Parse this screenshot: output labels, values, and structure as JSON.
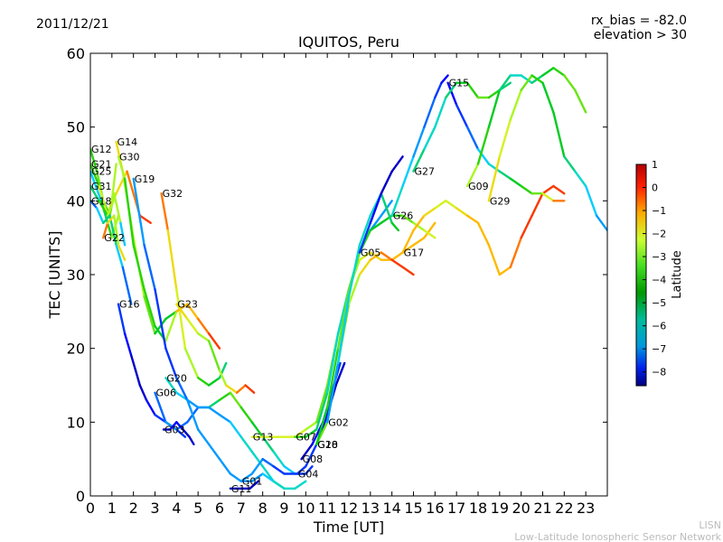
{
  "date": "2011/12/21",
  "rx_bias": "rx_bias = -82.0",
  "elevation": "elevation > 30",
  "footer_code": "LISN",
  "footer_name": "Low-Latitude Ionospheric Sensor Network",
  "chart_data": {
    "type": "line",
    "title": "IQUITOS, Peru",
    "xlabel": "Time [UT]",
    "ylabel": "TEC [UNITS]",
    "xlim": [
      0,
      24
    ],
    "ylim": [
      0,
      60
    ],
    "xticks": [
      "0",
      "1",
      "2",
      "3",
      "4",
      "5",
      "6",
      "7",
      "8",
      "9",
      "10",
      "11",
      "12",
      "13",
      "14",
      "15",
      "16",
      "17",
      "18",
      "19",
      "20",
      "21",
      "22",
      "23"
    ],
    "yticks": [
      "0",
      "10",
      "20",
      "30",
      "40",
      "50",
      "60"
    ],
    "grid": false,
    "colorbar": {
      "label": "Latitude",
      "ticks": [
        "1",
        "0",
        "−1",
        "−2",
        "−3",
        "−4",
        "−5",
        "−6",
        "−7",
        "−8"
      ],
      "range": [
        -8.6,
        1.0
      ]
    },
    "series": [
      {
        "name": "G12",
        "x": [
          0.0,
          0.3,
          0.6,
          0.9,
          1.1,
          1.4,
          1.6
        ],
        "y": [
          47,
          44,
          40,
          38,
          41,
          37,
          34
        ],
        "lat": [
          -3,
          -4,
          -2,
          -5,
          -1,
          -4,
          -7
        ]
      },
      {
        "name": "G21",
        "x": [
          0.0,
          0.4,
          0.8,
          1.0,
          1.2
        ],
        "y": [
          45,
          42,
          38,
          40,
          45
        ],
        "lat": [
          -4,
          -3,
          -1,
          -2,
          -3
        ]
      },
      {
        "name": "G25",
        "x": [
          0.0,
          0.5,
          0.8,
          1.0,
          1.3
        ],
        "y": [
          44,
          40,
          37,
          35,
          38
        ],
        "lat": [
          -6,
          -5,
          -4,
          -3,
          -2
        ]
      },
      {
        "name": "G31",
        "x": [
          0.0,
          0.4,
          0.8,
          1.2,
          1.7,
          2.3,
          2.8
        ],
        "y": [
          42,
          40,
          38,
          41,
          44,
          38,
          37
        ],
        "lat": [
          -5,
          -4,
          -3,
          -2,
          -1,
          0,
          0
        ]
      },
      {
        "name": "G18",
        "x": [
          0.0,
          0.3,
          0.6,
          0.9,
          1.2,
          1.5,
          1.9
        ],
        "y": [
          40,
          39,
          37,
          38,
          34,
          31,
          26
        ],
        "lat": [
          -7,
          -6,
          -5,
          -4,
          -5,
          -6,
          -7
        ]
      },
      {
        "name": "G22",
        "x": [
          0.6,
          0.8,
          1.1,
          1.3,
          1.6
        ],
        "y": [
          35,
          37,
          38,
          34,
          32
        ],
        "lat": [
          -1,
          0,
          -3,
          -2,
          -1
        ]
      },
      {
        "name": "G14",
        "x": [
          1.2,
          1.5,
          2.0,
          2.5,
          3.0,
          3.5,
          4.0,
          4.5
        ],
        "y": [
          48,
          44,
          35,
          27,
          22,
          24,
          25,
          26
        ],
        "lat": [
          -1,
          -2,
          -3,
          -2,
          -4,
          -4,
          -4,
          -5
        ]
      },
      {
        "name": "G32",
        "x": [
          3.3,
          3.6,
          4.0,
          4.4,
          5.0,
          5.5,
          6.0,
          6.3
        ],
        "y": [
          41,
          36,
          28,
          20,
          16,
          15,
          16,
          18
        ],
        "lat": [
          0,
          -1,
          -2,
          -2,
          -3,
          -4,
          -4,
          -5
        ]
      },
      {
        "name": "G30",
        "x": [
          1.3,
          1.6,
          2.0,
          2.5,
          3.0,
          3.5,
          4.0,
          4.5,
          5.0,
          5.5,
          6.0
        ],
        "y": [
          46,
          43,
          34,
          28,
          23,
          21,
          25,
          26,
          24,
          22,
          20
        ],
        "lat": [
          -2,
          -3,
          -4,
          -3,
          -4,
          -4,
          -1,
          -1,
          -1,
          0,
          0
        ]
      },
      {
        "name": "G16",
        "x": [
          1.3,
          1.6,
          1.9,
          2.1,
          2.3,
          2.6,
          3.0,
          3.5,
          4.0,
          4.4
        ],
        "y": [
          26,
          22,
          19,
          17,
          15,
          13,
          11,
          10,
          9,
          8
        ],
        "lat": [
          -7,
          -7,
          -8,
          -8,
          -8,
          -8,
          -7,
          -7,
          -7,
          -7
        ]
      },
      {
        "name": "G23",
        "x": [
          4.0,
          4.5,
          5.0,
          5.5,
          6.0,
          6.3,
          6.8,
          7.2,
          7.6
        ],
        "y": [
          26,
          24,
          22,
          21,
          17,
          15,
          14,
          15,
          14
        ],
        "lat": [
          -1,
          -2,
          -2,
          -3,
          -3,
          -2,
          -1,
          0,
          0
        ]
      },
      {
        "name": "G20",
        "x": [
          3.5,
          4.0,
          4.5,
          5.0,
          5.5,
          6.0,
          6.5,
          7.0,
          7.5,
          8.0,
          8.5,
          9.0,
          9.5
        ],
        "y": [
          16,
          14,
          13,
          12,
          12,
          13,
          14,
          12,
          10,
          8,
          6,
          4,
          3
        ],
        "lat": [
          -5,
          -5,
          -6,
          -6,
          -5,
          -4,
          -3,
          -3,
          -4,
          -4,
          -5,
          -5,
          -6
        ]
      },
      {
        "name": "G06",
        "x": [
          3.0,
          3.5,
          4.0,
          4.5,
          5.0,
          5.5,
          6.0,
          6.5,
          7.0,
          7.5,
          8.0,
          8.5,
          9.0
        ],
        "y": [
          14,
          10,
          9,
          10,
          12,
          12,
          11,
          10,
          8,
          6,
          4,
          2,
          1
        ],
        "lat": [
          -7,
          -6,
          -6,
          -7,
          -6,
          -6,
          -6,
          -6,
          -5,
          -5,
          -5,
          -5,
          -4
        ]
      },
      {
        "name": "G03",
        "x": [
          3.4,
          3.7,
          4.0,
          4.3,
          4.6,
          4.8
        ],
        "y": [
          9,
          9,
          10,
          9,
          8,
          7
        ],
        "lat": [
          -8,
          -8,
          -7,
          -8,
          -8,
          -8
        ]
      },
      {
        "name": "G19",
        "x": [
          2.0,
          2.5,
          3.0,
          3.5,
          4.0,
          4.5,
          5.0,
          5.5,
          6.0,
          6.5,
          7.0,
          7.5,
          8.0,
          8.5,
          9.0,
          9.5,
          10.0
        ],
        "y": [
          43,
          34,
          28,
          20,
          16,
          13,
          9,
          7,
          5,
          3,
          2,
          2,
          3,
          2,
          1,
          1,
          2
        ],
        "lat": [
          -6,
          -6,
          -7,
          -7,
          -7,
          -6,
          -6,
          -6,
          -6,
          -6,
          -6,
          -6,
          -6,
          -5,
          -5,
          -5,
          -5
        ]
      },
      {
        "name": "G11",
        "x": [
          6.5,
          7.0,
          7.4,
          7.8
        ],
        "y": [
          1,
          1,
          1,
          2
        ],
        "lat": [
          -8,
          -8,
          -8,
          -8
        ]
      },
      {
        "name": "G01",
        "x": [
          7.0,
          7.5,
          8.0,
          8.5,
          9.0,
          9.5,
          10.0,
          10.3
        ],
        "y": [
          2,
          3,
          5,
          4,
          3,
          3,
          3,
          4
        ],
        "lat": [
          -6,
          -6,
          -6,
          -7,
          -7,
          -7,
          -7,
          -7
        ]
      },
      {
        "name": "G13",
        "x": [
          7.5,
          8.0,
          8.5,
          9.0,
          9.5,
          10.0,
          10.5,
          11.0,
          11.5,
          12.0,
          12.5,
          13.0,
          13.5,
          14.0,
          14.5,
          15.0,
          15.5,
          16.0
        ],
        "y": [
          8,
          8,
          8,
          8,
          8,
          9,
          10,
          15,
          22,
          28,
          32,
          33,
          32,
          32,
          33,
          34,
          35,
          37
        ],
        "lat": [
          -2,
          -2,
          -2,
          -2,
          -2,
          -2,
          -3,
          -3,
          -3,
          -3,
          -2,
          -2,
          -1,
          -1,
          -1,
          -1,
          -1,
          -1
        ]
      },
      {
        "name": "G07",
        "x": [
          9.5,
          10.0,
          10.5,
          11.0,
          11.5,
          12.0,
          12.5,
          13.0,
          13.5,
          14.0
        ],
        "y": [
          8,
          8,
          9,
          14,
          22,
          28,
          33,
          36,
          38,
          40
        ],
        "lat": [
          -3,
          -4,
          -4,
          -5,
          -5,
          -5,
          -6,
          -6,
          -6,
          -6
        ]
      },
      {
        "name": "G08",
        "x": [
          9.8,
          10.3,
          10.8,
          11.3,
          11.6
        ],
        "y": [
          5,
          7,
          10,
          15,
          18
        ],
        "lat": [
          -8,
          -8,
          -7,
          -7,
          -7
        ]
      },
      {
        "name": "G04",
        "x": [
          9.6,
          10.0,
          10.5,
          11.0,
          11.4,
          11.8
        ],
        "y": [
          3,
          4,
          7,
          11,
          15,
          18
        ],
        "lat": [
          -7,
          -7,
          -7,
          -8,
          -8,
          -8
        ]
      },
      {
        "name": "G10",
        "x": [
          10.5,
          11.0,
          11.5,
          12.0,
          12.5,
          13.0,
          13.5,
          14.0,
          14.5,
          15.0
        ],
        "y": [
          7,
          10,
          18,
          26,
          30,
          32,
          33,
          32,
          31,
          30
        ],
        "lat": [
          -3,
          -3,
          -3,
          -3,
          -2,
          -1,
          -1,
          0,
          0,
          0
        ]
      },
      {
        "name": "G28",
        "x": [
          10.5,
          11.0,
          11.5,
          12.0,
          12.5,
          13.0,
          13.5,
          14.0,
          14.5,
          15.0,
          15.5,
          16.0
        ],
        "y": [
          7,
          12,
          20,
          28,
          33,
          36,
          37,
          38,
          38,
          37,
          36,
          35
        ],
        "lat": [
          -4,
          -4,
          -3,
          -3,
          -3,
          -4,
          -4,
          -4,
          -3,
          -3,
          -2,
          -2
        ]
      },
      {
        "name": "G02",
        "x": [
          11.0,
          11.5,
          12.0,
          12.5,
          13.0,
          13.5,
          14.0,
          14.3
        ],
        "y": [
          10,
          18,
          27,
          34,
          38,
          41,
          37,
          36
        ],
        "lat": [
          -6,
          -6,
          -5,
          -5,
          -5,
          -5,
          -4,
          -4
        ]
      },
      {
        "name": "G05",
        "x": [
          12.5,
          13.0,
          13.5,
          14.0,
          14.5
        ],
        "y": [
          33,
          37,
          41,
          44,
          46
        ],
        "lat": [
          -7,
          -7,
          -8,
          -8,
          -8
        ]
      },
      {
        "name": "G17",
        "x": [
          14.5,
          15.0,
          15.5,
          16.0,
          16.5,
          17.0,
          17.5,
          18.0,
          18.5,
          19.0,
          19.5,
          20.0,
          20.5,
          21.0,
          21.5,
          22.0
        ],
        "y": [
          33,
          36,
          38,
          39,
          40,
          39,
          38,
          37,
          34,
          30,
          31,
          35,
          38,
          41,
          42,
          41
        ],
        "lat": [
          -1,
          -1,
          -1,
          -2,
          -2,
          -2,
          -1,
          -1,
          -1,
          -1,
          -1,
          0,
          0,
          0,
          0,
          0
        ]
      },
      {
        "name": "G26",
        "x": [
          14.0,
          14.5,
          15.0,
          15.5,
          16.0,
          16.3,
          16.6
        ],
        "y": [
          38,
          42,
          46,
          50,
          54,
          56,
          57
        ],
        "lat": [
          -5,
          -5,
          -6,
          -6,
          -7,
          -7,
          -8
        ]
      },
      {
        "name": "G15",
        "x": [
          16.6,
          17.0,
          17.5,
          18.0,
          18.5,
          19.0,
          19.5,
          20.0,
          20.5,
          21.0,
          21.5,
          22.0
        ],
        "y": [
          56,
          53,
          50,
          47,
          45,
          44,
          43,
          42,
          41,
          41,
          40,
          40
        ],
        "lat": [
          -8,
          -7,
          -7,
          -6,
          -5,
          -5,
          -4,
          -4,
          -3,
          -3,
          -1,
          0
        ]
      },
      {
        "name": "G27",
        "x": [
          15.0,
          15.5,
          16.0,
          16.5,
          17.0,
          17.5,
          18.0,
          18.5,
          19.0,
          19.5
        ],
        "y": [
          44,
          47,
          50,
          54,
          56,
          56,
          54,
          54,
          55,
          56
        ],
        "lat": [
          -4,
          -5,
          -5,
          -5,
          -4,
          -4,
          -3,
          -3,
          -4,
          -5
        ]
      },
      {
        "name": "G09",
        "x": [
          17.5,
          18.0,
          18.5,
          19.0,
          19.5,
          20.0,
          20.5,
          21.0,
          21.5,
          22.0,
          22.5,
          23.0
        ],
        "y": [
          42,
          45,
          50,
          55,
          57,
          57,
          56,
          57,
          58,
          57,
          55,
          52
        ],
        "lat": [
          -2,
          -3,
          -4,
          -4,
          -5,
          -5,
          -5,
          -4,
          -4,
          -3,
          -3,
          -3
        ]
      },
      {
        "name": "G29",
        "x": [
          18.5,
          19.0,
          19.5,
          20.0,
          20.5,
          21.0,
          21.5,
          22.0,
          22.5,
          23.0,
          23.5,
          24.0
        ],
        "y": [
          40,
          46,
          51,
          55,
          57,
          56,
          52,
          46,
          44,
          42,
          38,
          36
        ],
        "lat": [
          -1,
          -2,
          -2,
          -3,
          -3,
          -4,
          -4,
          -4,
          -5,
          -5,
          -6,
          -6
        ]
      }
    ]
  }
}
